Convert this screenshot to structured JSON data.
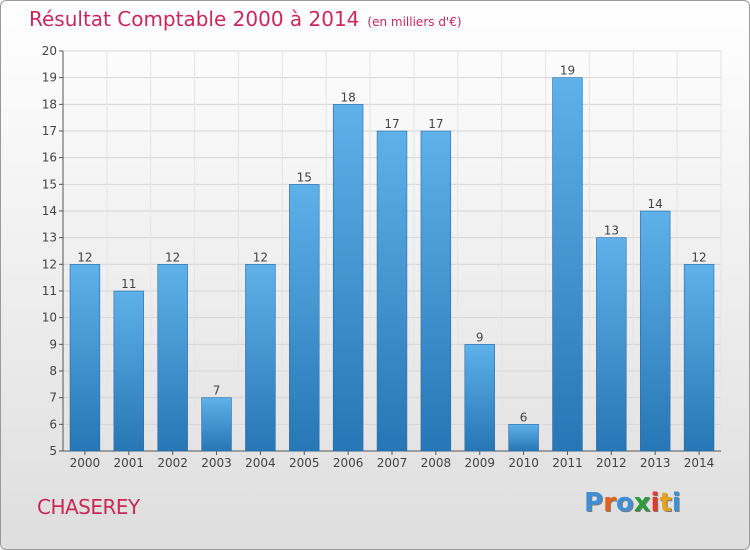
{
  "page": {
    "title": "Résultat Comptable 2000 à 2014",
    "unit": "(en milliers d'€)",
    "commune": "CHASEREY",
    "logo": "Proxiti"
  },
  "colors": {
    "title": "#c8285a",
    "bar_light": "#5eb1e9",
    "bar_dark": "#2776b5",
    "logo_letters": [
      "#3f8fd6",
      "#e8601c",
      "#3f8fd6",
      "#2d9b3a",
      "#e23b2e",
      "#e8a21c",
      "#3f8fd6"
    ]
  },
  "chart_data": {
    "type": "bar",
    "categories": [
      "2000",
      "2001",
      "2002",
      "2003",
      "2004",
      "2005",
      "2006",
      "2007",
      "2008",
      "2009",
      "2010",
      "2011",
      "2012",
      "2013",
      "2014"
    ],
    "values": [
      12,
      11,
      12,
      7,
      12,
      15,
      18,
      17,
      17,
      9,
      6,
      19,
      13,
      14,
      12
    ],
    "ylim": [
      5,
      20
    ],
    "yticks": [
      5,
      6,
      7,
      8,
      9,
      10,
      11,
      12,
      13,
      14,
      15,
      16,
      17,
      18,
      19,
      20
    ],
    "grid": true,
    "data_labels": true
  }
}
